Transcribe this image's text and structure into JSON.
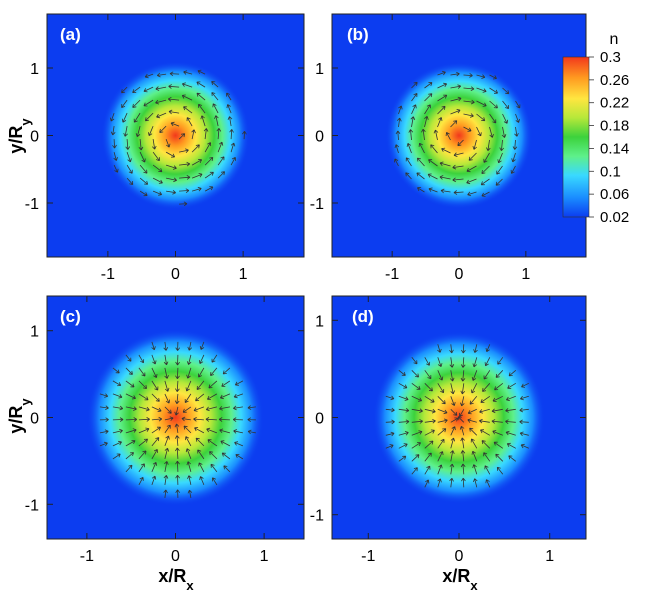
{
  "colorbar": {
    "title": "n",
    "ticks": [
      "0.3",
      "0.26",
      "0.22",
      "0.18",
      "0.14",
      "0.1",
      "0.06",
      "0.02"
    ],
    "tick_values": [
      0.3,
      0.26,
      0.22,
      0.18,
      0.14,
      0.1,
      0.06,
      0.02
    ],
    "range": [
      0.02,
      0.3
    ],
    "colors": [
      "#0c3df0",
      "#1a8cff",
      "#39d9ff",
      "#5ef08a",
      "#3cd23c",
      "#b6e83a",
      "#ffe640",
      "#ff9a20",
      "#f2381c"
    ]
  },
  "ylabel_main": "y/R",
  "ylabel_sub": "y",
  "xlabel_main": "x/R",
  "xlabel_sub": "x",
  "chart_data": [
    {
      "type": "heatmap",
      "panel_label": "(a)",
      "x_tick_labels": [
        "-1",
        "0",
        "1"
      ],
      "x_tick_values": [
        -1,
        0,
        1
      ],
      "y_tick_labels": [
        "1",
        "0",
        "-1"
      ],
      "y_tick_values": [
        1,
        0,
        -1
      ],
      "xlim": [
        -1.9,
        1.9
      ],
      "ylim": [
        -1.8,
        1.8
      ],
      "peak_n": 0.3,
      "background_n": 0.02,
      "cloud_radius": 1.1,
      "arrow_field": "rotating (counter-clockwise)"
    },
    {
      "type": "heatmap",
      "panel_label": "(b)",
      "x_tick_labels": [
        "-1",
        "0",
        "1"
      ],
      "x_tick_values": [
        -1,
        0,
        1
      ],
      "y_tick_labels": [
        "1",
        "0",
        "-1"
      ],
      "y_tick_values": [
        1,
        0,
        -1
      ],
      "xlim": [
        -1.9,
        1.9
      ],
      "ylim": [
        -1.8,
        1.8
      ],
      "peak_n": 0.3,
      "background_n": 0.02,
      "cloud_radius": 1.1,
      "arrow_field": "rotating (clockwise)"
    },
    {
      "type": "heatmap",
      "panel_label": "(c)",
      "x_tick_labels": [
        "-1",
        "0",
        "1"
      ],
      "x_tick_values": [
        -1,
        0,
        1
      ],
      "y_tick_labels": [
        "1",
        "0",
        "-1"
      ],
      "y_tick_values": [
        1,
        0,
        -1
      ],
      "xlim": [
        -1.45,
        1.45
      ],
      "ylim": [
        -1.4,
        1.4
      ],
      "peak_n": 0.3,
      "background_n": 0.02,
      "cloud_radius": 1.0,
      "arrow_field": "radial inward"
    },
    {
      "type": "heatmap",
      "panel_label": "(d)",
      "x_tick_labels": [
        "-1",
        "0",
        "1"
      ],
      "x_tick_values": [
        -1,
        0,
        1
      ],
      "y_tick_labels": [
        "1",
        "0",
        "-1"
      ],
      "y_tick_values": [
        1,
        0,
        -1
      ],
      "xlim": [
        -1.4,
        1.4
      ],
      "ylim": [
        -1.25,
        1.25
      ],
      "peak_n": 0.3,
      "background_n": 0.02,
      "cloud_radius": 0.95,
      "arrow_field": "radial inward"
    }
  ]
}
